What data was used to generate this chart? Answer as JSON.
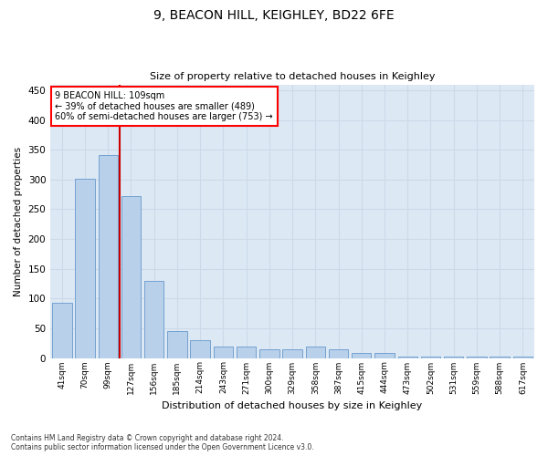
{
  "title": "9, BEACON HILL, KEIGHLEY, BD22 6FE",
  "subtitle": "Size of property relative to detached houses in Keighley",
  "xlabel": "Distribution of detached houses by size in Keighley",
  "ylabel": "Number of detached properties",
  "footer_line1": "Contains HM Land Registry data © Crown copyright and database right 2024.",
  "footer_line2": "Contains public sector information licensed under the Open Government Licence v3.0.",
  "bar_labels": [
    "41sqm",
    "70sqm",
    "99sqm",
    "127sqm",
    "156sqm",
    "185sqm",
    "214sqm",
    "243sqm",
    "271sqm",
    "300sqm",
    "329sqm",
    "358sqm",
    "387sqm",
    "415sqm",
    "444sqm",
    "473sqm",
    "502sqm",
    "531sqm",
    "559sqm",
    "588sqm",
    "617sqm"
  ],
  "bar_values": [
    93,
    302,
    341,
    272,
    130,
    46,
    30,
    19,
    19,
    14,
    14,
    19,
    14,
    8,
    8,
    2,
    2,
    2,
    3,
    3,
    2
  ],
  "bar_color": "#b8d0ea",
  "bar_edge_color": "#6699cc",
  "grid_color": "#ccd9e8",
  "background_color": "#dce8f4",
  "red_line_x": 2.5,
  "annotation_line1": "9 BEACON HILL: 109sqm",
  "annotation_line2": "← 39% of detached houses are smaller (489)",
  "annotation_line3": "60% of semi-detached houses are larger (753) →",
  "annotation_box_color": "white",
  "annotation_box_edge": "red",
  "red_line_color": "#cc0000",
  "ylim": [
    0,
    460
  ],
  "yticks": [
    0,
    50,
    100,
    150,
    200,
    250,
    300,
    350,
    400,
    450
  ]
}
